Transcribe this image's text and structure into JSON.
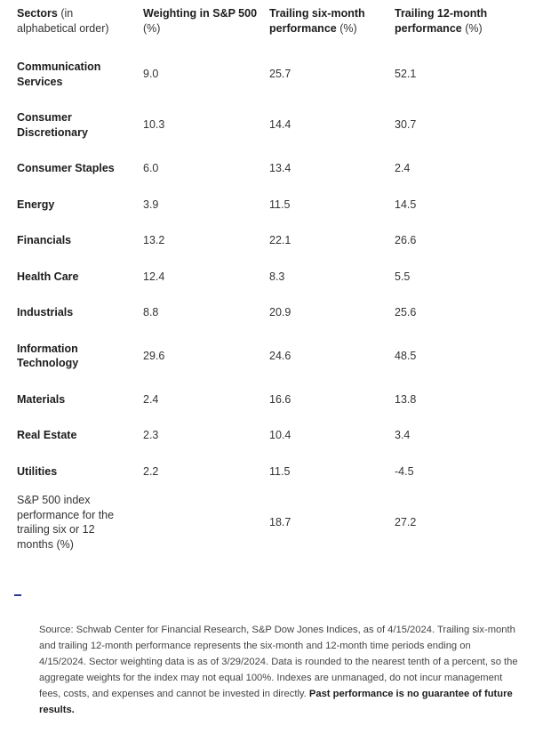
{
  "table": {
    "headers": [
      {
        "bold": "Sectors",
        "normal": " (in alphabetical order)"
      },
      {
        "bold": "Weighting in S&P 500",
        "normal": " (%)"
      },
      {
        "bold": "Trailing six-month performance",
        "normal": " (%)"
      },
      {
        "bold": "Trailing 12-month performance",
        "normal": " (%)"
      }
    ],
    "rows": [
      {
        "sector": "Communication Services",
        "weighting": "9.0",
        "six_month": "25.7",
        "twelve_month": "52.1"
      },
      {
        "sector": "Consumer Discretionary",
        "weighting": "10.3",
        "six_month": "14.4",
        "twelve_month": "30.7"
      },
      {
        "sector": "Consumer Staples",
        "weighting": "6.0",
        "six_month": "13.4",
        "twelve_month": "2.4"
      },
      {
        "sector": "Energy",
        "weighting": "3.9",
        "six_month": "11.5",
        "twelve_month": "14.5"
      },
      {
        "sector": "Financials",
        "weighting": "13.2",
        "six_month": "22.1",
        "twelve_month": "26.6"
      },
      {
        "sector": "Health Care",
        "weighting": "12.4",
        "six_month": "8.3",
        "twelve_month": "5.5"
      },
      {
        "sector": "Industrials",
        "weighting": "8.8",
        "six_month": "20.9",
        "twelve_month": "25.6"
      },
      {
        "sector": "Information Technology",
        "weighting": "29.6",
        "six_month": "24.6",
        "twelve_month": "48.5"
      },
      {
        "sector": "Materials",
        "weighting": "2.4",
        "six_month": "16.6",
        "twelve_month": "13.8"
      },
      {
        "sector": "Real Estate",
        "weighting": "2.3",
        "six_month": "10.4",
        "twelve_month": "3.4"
      },
      {
        "sector": "Utilities",
        "weighting": "2.2",
        "six_month": "11.5",
        "twelve_month": "-4.5"
      }
    ],
    "index_row": {
      "label": "S&P 500 index performance for the trailing six or 12 months (%)",
      "weighting": "",
      "six_month": "18.7",
      "twelve_month": "27.2"
    }
  },
  "source": {
    "text": "Source: Schwab Center for Financial Research, S&P Dow Jones Indices, as of 4/15/2024. Trailing six-month and trailing 12-month performance represents the six-month and 12-month time periods ending on 4/15/2024. Sector weighting data is as of 3/29/2024. Data is rounded to the nearest tenth of a percent, so the aggregate weights for the index may not equal 100%. Indexes are unmanaged, do not incur management fees, costs, and expenses and cannot be invested in directly.",
    "bold": " Past performance is no guarantee of future results."
  }
}
